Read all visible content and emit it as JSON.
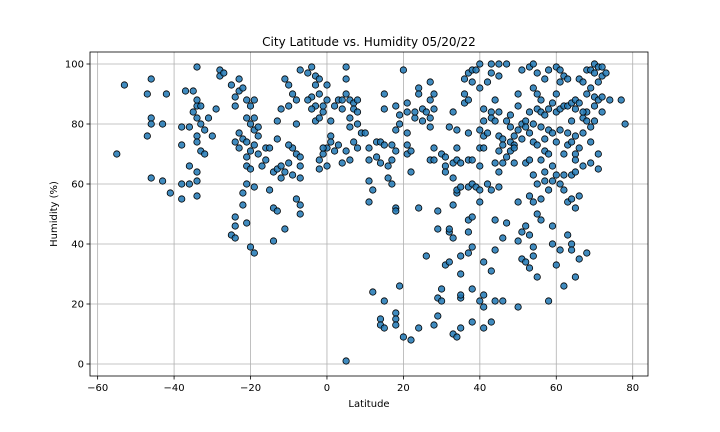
{
  "chart_data": {
    "type": "scatter",
    "title": "City Latitude vs. Humidity 05/20/22",
    "xlabel": "Latitude",
    "ylabel": "Humidity (%)",
    "xlim": [
      -62,
      84
    ],
    "ylim": [
      -4,
      104
    ],
    "xticks": [
      -60,
      -40,
      -20,
      0,
      20,
      40,
      60,
      80
    ],
    "yticks": [
      0,
      20,
      40,
      60,
      80,
      100
    ],
    "grid": true,
    "marker_color": "#1f77b4",
    "marker_edge": "#000000",
    "points": [
      [
        -55,
        70
      ],
      [
        -53,
        93
      ],
      [
        -46,
        95
      ],
      [
        -47,
        90
      ],
      [
        -46,
        82
      ],
      [
        -46,
        80
      ],
      [
        -47,
        76
      ],
      [
        -43,
        80
      ],
      [
        -42,
        90
      ],
      [
        -46,
        62
      ],
      [
        -43,
        61
      ],
      [
        -41,
        57
      ],
      [
        -37,
        91
      ],
      [
        -35,
        91
      ],
      [
        -36,
        79
      ],
      [
        -38,
        79
      ],
      [
        -35,
        84
      ],
      [
        -34,
        86
      ],
      [
        -34,
        88
      ],
      [
        -33,
        86
      ],
      [
        -34,
        82
      ],
      [
        -33,
        80
      ],
      [
        -34,
        76
      ],
      [
        -34,
        74
      ],
      [
        -33,
        71
      ],
      [
        -32,
        70
      ],
      [
        -36,
        66
      ],
      [
        -34,
        64
      ],
      [
        -36,
        60
      ],
      [
        -34,
        61
      ],
      [
        -38,
        60
      ],
      [
        -38,
        55
      ],
      [
        -34,
        56
      ],
      [
        -38,
        73
      ],
      [
        -34,
        99
      ],
      [
        -32,
        78
      ],
      [
        -30,
        76
      ],
      [
        -31,
        82
      ],
      [
        -29,
        85
      ],
      [
        -28,
        98
      ],
      [
        -28,
        96
      ],
      [
        -27,
        97
      ],
      [
        -25,
        93
      ],
      [
        -24,
        89
      ],
      [
        -24,
        86
      ],
      [
        -23,
        91
      ],
      [
        -23,
        95
      ],
      [
        -22,
        92
      ],
      [
        -21,
        88
      ],
      [
        -20,
        86
      ],
      [
        -19,
        88
      ],
      [
        -19,
        82
      ],
      [
        -20,
        80
      ],
      [
        -21,
        82
      ],
      [
        -22,
        75
      ],
      [
        -23,
        72
      ],
      [
        -23,
        77
      ],
      [
        -24,
        74
      ],
      [
        -21,
        74
      ],
      [
        -20,
        71
      ],
      [
        -19,
        73
      ],
      [
        -19,
        78
      ],
      [
        -18,
        76
      ],
      [
        -21,
        69
      ],
      [
        -21,
        66
      ],
      [
        -20,
        65
      ],
      [
        -21,
        60
      ],
      [
        -19,
        59
      ],
      [
        -22,
        57
      ],
      [
        -22,
        53
      ],
      [
        -24,
        49
      ],
      [
        -24,
        46
      ],
      [
        -25,
        43
      ],
      [
        -24,
        42
      ],
      [
        -21,
        47
      ],
      [
        -20,
        39
      ],
      [
        -19,
        37
      ],
      [
        -18,
        79
      ],
      [
        -18,
        70
      ],
      [
        -16,
        72
      ],
      [
        -15,
        72
      ],
      [
        -16,
        68
      ],
      [
        -17,
        66
      ],
      [
        -14,
        64
      ],
      [
        -13,
        65
      ],
      [
        -12,
        62
      ],
      [
        -11,
        64
      ],
      [
        -13,
        75
      ],
      [
        -13,
        81
      ],
      [
        -12,
        85
      ],
      [
        -10,
        86
      ],
      [
        -11,
        95
      ],
      [
        -10,
        93
      ],
      [
        -9,
        90
      ],
      [
        -8,
        88
      ],
      [
        -7,
        98
      ],
      [
        -8,
        80
      ],
      [
        -9,
        72
      ],
      [
        -8,
        70
      ],
      [
        -7,
        69
      ],
      [
        -7,
        66
      ],
      [
        -7,
        62
      ],
      [
        -10,
        73
      ],
      [
        -12,
        66
      ],
      [
        -15,
        58
      ],
      [
        -14,
        52
      ],
      [
        -13,
        51
      ],
      [
        -14,
        41
      ],
      [
        -11,
        45
      ],
      [
        -8,
        55
      ],
      [
        -7,
        53
      ],
      [
        -7,
        50
      ],
      [
        -9,
        63
      ],
      [
        -10,
        67
      ],
      [
        -5,
        97
      ],
      [
        -4,
        99
      ],
      [
        -3,
        96
      ],
      [
        -3,
        93
      ],
      [
        -2,
        95
      ],
      [
        -2,
        90
      ],
      [
        -3,
        86
      ],
      [
        -4,
        85
      ],
      [
        -4,
        89
      ],
      [
        -5,
        88
      ],
      [
        -3,
        81
      ],
      [
        -2,
        82
      ],
      [
        -1,
        84
      ],
      [
        -1,
        86
      ],
      [
        0,
        88
      ],
      [
        0,
        93
      ],
      [
        1,
        81
      ],
      [
        1,
        76
      ],
      [
        0,
        72
      ],
      [
        -1,
        70
      ],
      [
        -2,
        68
      ],
      [
        -2,
        65
      ],
      [
        -1,
        72
      ],
      [
        0,
        66
      ],
      [
        1,
        74
      ],
      [
        2,
        71
      ],
      [
        2,
        86
      ],
      [
        3,
        88
      ],
      [
        4,
        85
      ],
      [
        4,
        88
      ],
      [
        5,
        90
      ],
      [
        5,
        95
      ],
      [
        5,
        99
      ],
      [
        6,
        88
      ],
      [
        7,
        87
      ],
      [
        7,
        85
      ],
      [
        8,
        88
      ],
      [
        6,
        82
      ],
      [
        6,
        79
      ],
      [
        7,
        74
      ],
      [
        8,
        72
      ],
      [
        5,
        71
      ],
      [
        6,
        68
      ],
      [
        4,
        67
      ],
      [
        3,
        73
      ],
      [
        8,
        84
      ],
      [
        8,
        80
      ],
      [
        5,
        1
      ],
      [
        9,
        77
      ],
      [
        10,
        77
      ],
      [
        11,
        72
      ],
      [
        11,
        68
      ],
      [
        11,
        61
      ],
      [
        12,
        58
      ],
      [
        11,
        54
      ],
      [
        12,
        24
      ],
      [
        13,
        74
      ],
      [
        13,
        69
      ],
      [
        14,
        67
      ],
      [
        14,
        74
      ],
      [
        15,
        73
      ],
      [
        15,
        85
      ],
      [
        15,
        90
      ],
      [
        14,
        15
      ],
      [
        14,
        13
      ],
      [
        15,
        12
      ],
      [
        15,
        21
      ],
      [
        16,
        62
      ],
      [
        16,
        66
      ],
      [
        17,
        60
      ],
      [
        18,
        78
      ],
      [
        17,
        73
      ],
      [
        18,
        71
      ],
      [
        17,
        68
      ],
      [
        18,
        86
      ],
      [
        19,
        80
      ],
      [
        19,
        83
      ],
      [
        18,
        52
      ],
      [
        18,
        51
      ],
      [
        18,
        17
      ],
      [
        18,
        15
      ],
      [
        18,
        13
      ],
      [
        19,
        26
      ],
      [
        20,
        98
      ],
      [
        20,
        9
      ],
      [
        21,
        84
      ],
      [
        21,
        77
      ],
      [
        21,
        73
      ],
      [
        21,
        70
      ],
      [
        21,
        87
      ],
      [
        22,
        8
      ],
      [
        22,
        64
      ],
      [
        22,
        71
      ],
      [
        23,
        82
      ],
      [
        23,
        84
      ],
      [
        24,
        92
      ],
      [
        24,
        90
      ],
      [
        25,
        85
      ],
      [
        25,
        81
      ],
      [
        24,
        52
      ],
      [
        24,
        12
      ],
      [
        26,
        36
      ],
      [
        26,
        84
      ],
      [
        27,
        79
      ],
      [
        27,
        82
      ],
      [
        27,
        88
      ],
      [
        27,
        94
      ],
      [
        28,
        85
      ],
      [
        28,
        90
      ],
      [
        27,
        68
      ],
      [
        28,
        68
      ],
      [
        28,
        72
      ],
      [
        28,
        13
      ],
      [
        29,
        16
      ],
      [
        29,
        22
      ],
      [
        29,
        45
      ],
      [
        29,
        51
      ],
      [
        30,
        21
      ],
      [
        30,
        25
      ],
      [
        30,
        70
      ],
      [
        31,
        66
      ],
      [
        31,
        69
      ],
      [
        31,
        64
      ],
      [
        31,
        33
      ],
      [
        32,
        34
      ],
      [
        32,
        44
      ],
      [
        32,
        45
      ],
      [
        32,
        79
      ],
      [
        33,
        84
      ],
      [
        33,
        62
      ],
      [
        33,
        67
      ],
      [
        33,
        53
      ],
      [
        33,
        42
      ],
      [
        33,
        10
      ],
      [
        34,
        9
      ],
      [
        34,
        57
      ],
      [
        34,
        58
      ],
      [
        34,
        68
      ],
      [
        34,
        72
      ],
      [
        34,
        78
      ],
      [
        35,
        67
      ],
      [
        35,
        59
      ],
      [
        35,
        36
      ],
      [
        35,
        30
      ],
      [
        35,
        22
      ],
      [
        35,
        23
      ],
      [
        35,
        12
      ],
      [
        36,
        87
      ],
      [
        36,
        90
      ],
      [
        36,
        95
      ],
      [
        37,
        97
      ],
      [
        37,
        88
      ],
      [
        37,
        77
      ],
      [
        37,
        68
      ],
      [
        37,
        48
      ],
      [
        37,
        37
      ],
      [
        37,
        44
      ],
      [
        37,
        59
      ],
      [
        38,
        98
      ],
      [
        38,
        94
      ],
      [
        38,
        68
      ],
      [
        38,
        60
      ],
      [
        38,
        49
      ],
      [
        38,
        39
      ],
      [
        38,
        25
      ],
      [
        38,
        14
      ],
      [
        39,
        98
      ],
      [
        39,
        59
      ],
      [
        40,
        100
      ],
      [
        40,
        92
      ],
      [
        40,
        78
      ],
      [
        40,
        72
      ],
      [
        40,
        66
      ],
      [
        40,
        58
      ],
      [
        40,
        54
      ],
      [
        40,
        21
      ],
      [
        41,
        81
      ],
      [
        41,
        85
      ],
      [
        41,
        76
      ],
      [
        41,
        72
      ],
      [
        41,
        34
      ],
      [
        41,
        23
      ],
      [
        41,
        19
      ],
      [
        41,
        12
      ],
      [
        42,
        60
      ],
      [
        42,
        77
      ],
      [
        42,
        94
      ],
      [
        43,
        100
      ],
      [
        43,
        97
      ],
      [
        43,
        84
      ],
      [
        43,
        82
      ],
      [
        43,
        58
      ],
      [
        43,
        31
      ],
      [
        43,
        14
      ],
      [
        44,
        88
      ],
      [
        44,
        81
      ],
      [
        44,
        67
      ],
      [
        44,
        48
      ],
      [
        44,
        38
      ],
      [
        44,
        21
      ],
      [
        45,
        100
      ],
      [
        45,
        96
      ],
      [
        45,
        84
      ],
      [
        45,
        76
      ],
      [
        45,
        71
      ],
      [
        45,
        64
      ],
      [
        45,
        59
      ],
      [
        46,
        75
      ],
      [
        46,
        73
      ],
      [
        46,
        67
      ],
      [
        46,
        42
      ],
      [
        46,
        21
      ],
      [
        47,
        100
      ],
      [
        47,
        81
      ],
      [
        47,
        69
      ],
      [
        47,
        47
      ],
      [
        48,
        83
      ],
      [
        48,
        79
      ],
      [
        48,
        74
      ],
      [
        48,
        71
      ],
      [
        49,
        76
      ],
      [
        49,
        73
      ],
      [
        49,
        72
      ],
      [
        49,
        67
      ],
      [
        50,
        90
      ],
      [
        50,
        86
      ],
      [
        50,
        78
      ],
      [
        50,
        54
      ],
      [
        50,
        41
      ],
      [
        50,
        19
      ],
      [
        51,
        98
      ],
      [
        51,
        80
      ],
      [
        51,
        75
      ],
      [
        51,
        35
      ],
      [
        51,
        44
      ],
      [
        52,
        81
      ],
      [
        52,
        79
      ],
      [
        52,
        67
      ],
      [
        52,
        46
      ],
      [
        52,
        34
      ],
      [
        53,
        99
      ],
      [
        53,
        84
      ],
      [
        53,
        77
      ],
      [
        53,
        68
      ],
      [
        53,
        56
      ],
      [
        53,
        43
      ],
      [
        53,
        32
      ],
      [
        54,
        100
      ],
      [
        54,
        92
      ],
      [
        54,
        80
      ],
      [
        54,
        74
      ],
      [
        54,
        63
      ],
      [
        54,
        54
      ],
      [
        54,
        39
      ],
      [
        54,
        36
      ],
      [
        55,
        97
      ],
      [
        55,
        90
      ],
      [
        55,
        85
      ],
      [
        55,
        73
      ],
      [
        55,
        60
      ],
      [
        55,
        50
      ],
      [
        55,
        29
      ],
      [
        56,
        88
      ],
      [
        56,
        84
      ],
      [
        56,
        79
      ],
      [
        56,
        68
      ],
      [
        56,
        55
      ],
      [
        56,
        48
      ],
      [
        57,
        95
      ],
      [
        57,
        83
      ],
      [
        57,
        75
      ],
      [
        57,
        71
      ],
      [
        57,
        64
      ],
      [
        57,
        61
      ],
      [
        58,
        98
      ],
      [
        58,
        85
      ],
      [
        58,
        78
      ],
      [
        58,
        70
      ],
      [
        58,
        58
      ],
      [
        58,
        21
      ],
      [
        59,
        87
      ],
      [
        59,
        77
      ],
      [
        59,
        66
      ],
      [
        59,
        61
      ],
      [
        59,
        46
      ],
      [
        59,
        40
      ],
      [
        60,
        99
      ],
      [
        60,
        90
      ],
      [
        60,
        84
      ],
      [
        60,
        74
      ],
      [
        60,
        63
      ],
      [
        60,
        33
      ],
      [
        61,
        98
      ],
      [
        61,
        94
      ],
      [
        61,
        85
      ],
      [
        61,
        78
      ],
      [
        61,
        60
      ],
      [
        61,
        38
      ],
      [
        62,
        96
      ],
      [
        62,
        86
      ],
      [
        62,
        70
      ],
      [
        62,
        58
      ],
      [
        62,
        26
      ],
      [
        63,
        95
      ],
      [
        63,
        86
      ],
      [
        63,
        77
      ],
      [
        63,
        73
      ],
      [
        63,
        54
      ],
      [
        63,
        43
      ],
      [
        64,
        87
      ],
      [
        64,
        81
      ],
      [
        64,
        74
      ],
      [
        64,
        63
      ],
      [
        64,
        55
      ],
      [
        64,
        40
      ],
      [
        64,
        38
      ],
      [
        65,
        88
      ],
      [
        65,
        85
      ],
      [
        65,
        76
      ],
      [
        65,
        70
      ],
      [
        65,
        68
      ],
      [
        65,
        52
      ],
      [
        65,
        29
      ],
      [
        66,
        95
      ],
      [
        66,
        87
      ],
      [
        66,
        72
      ],
      [
        66,
        56
      ],
      [
        66,
        35
      ],
      [
        67,
        94
      ],
      [
        67,
        82
      ],
      [
        67,
        77
      ],
      [
        67,
        66
      ],
      [
        68,
        98
      ],
      [
        68,
        90
      ],
      [
        68,
        84
      ],
      [
        68,
        81
      ],
      [
        68,
        37
      ],
      [
        69,
        98
      ],
      [
        69,
        92
      ],
      [
        69,
        79
      ],
      [
        69,
        74
      ],
      [
        69,
        67
      ],
      [
        70,
        100
      ],
      [
        70,
        97
      ],
      [
        70,
        89
      ],
      [
        70,
        86
      ],
      [
        70,
        81
      ],
      [
        71,
        99
      ],
      [
        71,
        94
      ],
      [
        71,
        88
      ],
      [
        71,
        70
      ],
      [
        71,
        65
      ],
      [
        72,
        99
      ],
      [
        72,
        96
      ],
      [
        72,
        89
      ],
      [
        72,
        84
      ],
      [
        73,
        97
      ],
      [
        74,
        88
      ],
      [
        77,
        88
      ],
      [
        78,
        80
      ],
      [
        67,
        84
      ],
      [
        65,
        64
      ],
      [
        62,
        63
      ]
    ]
  }
}
